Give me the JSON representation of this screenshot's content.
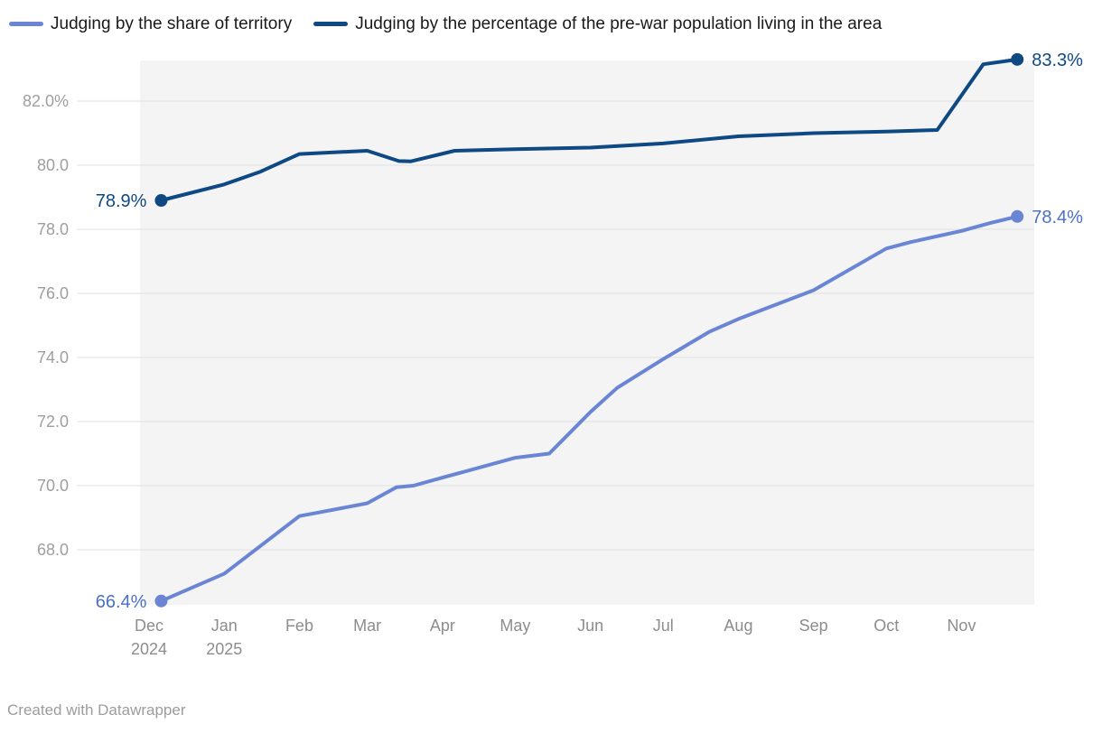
{
  "chart_data": {
    "type": "line",
    "title": "",
    "legend_position": "top",
    "grid": true,
    "x_axis": {
      "min": "2024-12-01",
      "max": "2025-12-01",
      "ticks": [
        {
          "date": "2024-12-01",
          "label": "Dec",
          "sublabel": "2024"
        },
        {
          "date": "2025-01-01",
          "label": "Jan",
          "sublabel": "2025"
        },
        {
          "date": "2025-02-01",
          "label": "Feb",
          "sublabel": ""
        },
        {
          "date": "2025-03-01",
          "label": "Mar",
          "sublabel": ""
        },
        {
          "date": "2025-04-01",
          "label": "Apr",
          "sublabel": ""
        },
        {
          "date": "2025-05-01",
          "label": "May",
          "sublabel": ""
        },
        {
          "date": "2025-06-01",
          "label": "Jun",
          "sublabel": ""
        },
        {
          "date": "2025-07-01",
          "label": "Jul",
          "sublabel": ""
        },
        {
          "date": "2025-08-01",
          "label": "Aug",
          "sublabel": ""
        },
        {
          "date": "2025-09-01",
          "label": "Sep",
          "sublabel": ""
        },
        {
          "date": "2025-10-01",
          "label": "Oct",
          "sublabel": ""
        },
        {
          "date": "2025-11-01",
          "label": "Nov",
          "sublabel": ""
        }
      ]
    },
    "y_axis": {
      "range": [
        66.3,
        83.3
      ],
      "ticks": [
        {
          "value": 82,
          "label": "82.0%"
        },
        {
          "value": 80,
          "label": "80.0"
        },
        {
          "value": 78,
          "label": "78.0"
        },
        {
          "value": 76,
          "label": "76.0"
        },
        {
          "value": 74,
          "label": "74.0"
        },
        {
          "value": 72,
          "label": "72.0"
        },
        {
          "value": 70,
          "label": "70.0"
        },
        {
          "value": 68,
          "label": "68.0"
        }
      ]
    },
    "series": [
      {
        "key": "share-of-territory",
        "name": "Judging by the share of territory",
        "color": "#6a85d4",
        "label_color": "#4a70c8",
        "start_label": "66.4%",
        "end_label": "78.4%",
        "points": [
          {
            "date": "2024-12-06",
            "value": 66.4
          },
          {
            "date": "2025-01-01",
            "value": 67.25
          },
          {
            "date": "2025-02-01",
            "value": 69.05
          },
          {
            "date": "2025-02-08",
            "value": 69.15
          },
          {
            "date": "2025-03-01",
            "value": 69.45
          },
          {
            "date": "2025-03-13",
            "value": 69.95
          },
          {
            "date": "2025-03-20",
            "value": 70.0
          },
          {
            "date": "2025-04-01",
            "value": 70.25
          },
          {
            "date": "2025-05-01",
            "value": 70.87
          },
          {
            "date": "2025-05-15",
            "value": 71.0
          },
          {
            "date": "2025-06-01",
            "value": 72.3
          },
          {
            "date": "2025-06-12",
            "value": 73.05
          },
          {
            "date": "2025-07-01",
            "value": 73.95
          },
          {
            "date": "2025-07-20",
            "value": 74.8
          },
          {
            "date": "2025-08-01",
            "value": 75.2
          },
          {
            "date": "2025-09-01",
            "value": 76.1
          },
          {
            "date": "2025-10-01",
            "value": 77.4
          },
          {
            "date": "2025-10-11",
            "value": 77.6
          },
          {
            "date": "2025-11-01",
            "value": 77.95
          },
          {
            "date": "2025-11-13",
            "value": 78.2
          },
          {
            "date": "2025-11-24",
            "value": 78.4
          }
        ]
      },
      {
        "key": "pre-war-population",
        "name": "Judging by the percentage of the pre-war population living in the area",
        "color": "#0e4983",
        "label_color": "#0e4983",
        "start_label": "78.9%",
        "end_label": "83.3%",
        "points": [
          {
            "date": "2024-12-06",
            "value": 78.9
          },
          {
            "date": "2025-01-01",
            "value": 79.4
          },
          {
            "date": "2025-01-16",
            "value": 79.8
          },
          {
            "date": "2025-02-01",
            "value": 80.35
          },
          {
            "date": "2025-03-01",
            "value": 80.45
          },
          {
            "date": "2025-03-14",
            "value": 80.13
          },
          {
            "date": "2025-03-19",
            "value": 80.12
          },
          {
            "date": "2025-04-06",
            "value": 80.45
          },
          {
            "date": "2025-05-01",
            "value": 80.5
          },
          {
            "date": "2025-06-01",
            "value": 80.55
          },
          {
            "date": "2025-07-01",
            "value": 80.68
          },
          {
            "date": "2025-08-01",
            "value": 80.9
          },
          {
            "date": "2025-09-01",
            "value": 81.0
          },
          {
            "date": "2025-10-01",
            "value": 81.05
          },
          {
            "date": "2025-10-22",
            "value": 81.1
          },
          {
            "date": "2025-11-10",
            "value": 83.15
          },
          {
            "date": "2025-11-24",
            "value": 83.3
          }
        ]
      }
    ]
  },
  "colors": {
    "plot_bg": "#f4f4f4",
    "gridline": "#e1e1e1",
    "y_tick_text": "#9e9e9e",
    "x_tick_text": "#8d8d8d",
    "legend_text": "#1a1a1a",
    "footer_text": "#9c9c9c"
  },
  "footer": {
    "text": "Created with Datawrapper"
  }
}
